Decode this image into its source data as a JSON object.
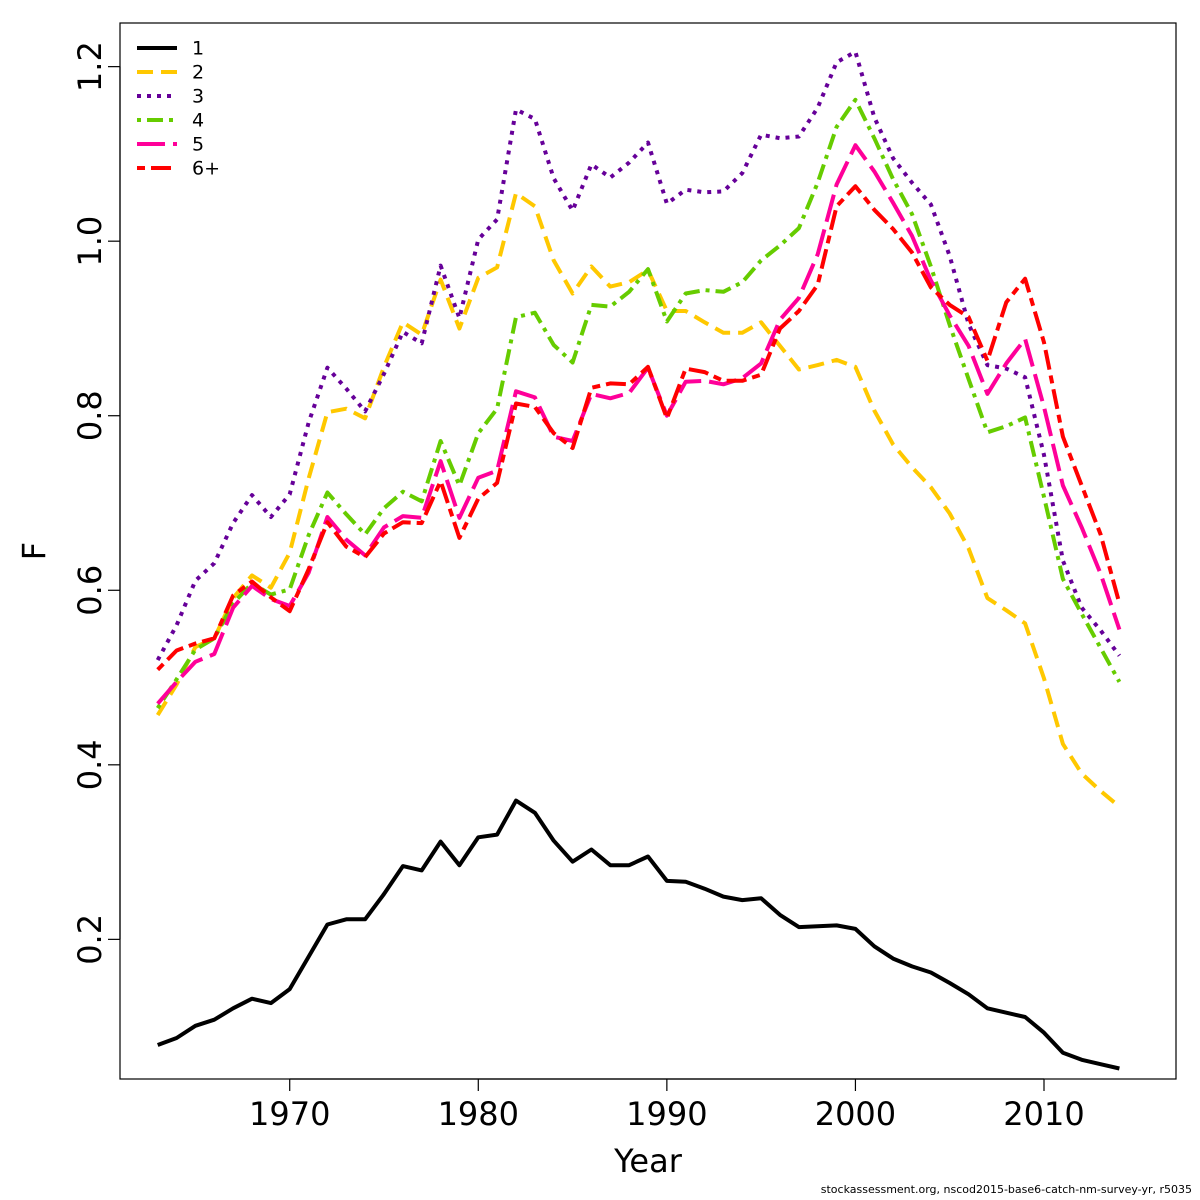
{
  "footer": "stockassessment.org, nscod2015-base6-catch-nm-survey-yr, r5035",
  "chart_data": {
    "type": "line",
    "title": "",
    "xlabel": "Year",
    "ylabel": "F",
    "xlim": [
      1961,
      2017
    ],
    "ylim": [
      0.04,
      1.25
    ],
    "x_ticks": [
      1970,
      1980,
      1990,
      2000,
      2010
    ],
    "y_ticks": [
      0.2,
      0.4,
      0.6,
      0.8,
      1.0,
      1.2
    ],
    "y_tick_labels": [
      "0.2",
      "0.4",
      "0.6",
      "0.8",
      "1.0",
      "1.2"
    ],
    "grid": false,
    "legend_position": "top-left",
    "x": [
      1963,
      1964,
      1965,
      1966,
      1967,
      1968,
      1969,
      1970,
      1971,
      1972,
      1973,
      1974,
      1975,
      1976,
      1977,
      1978,
      1979,
      1980,
      1981,
      1982,
      1983,
      1984,
      1985,
      1986,
      1987,
      1988,
      1989,
      1990,
      1991,
      1992,
      1993,
      1994,
      1995,
      1996,
      1997,
      1998,
      1999,
      2000,
      2001,
      2002,
      2003,
      2004,
      2005,
      2006,
      2007,
      2008,
      2009,
      2010,
      2011,
      2012,
      2013,
      2014
    ],
    "series": [
      {
        "name": "1",
        "color": "#000000",
        "dash": "solid",
        "values": [
          0.079,
          0.087,
          0.101,
          0.108,
          0.121,
          0.132,
          0.127,
          0.143,
          0.18,
          0.217,
          0.223,
          0.223,
          0.252,
          0.284,
          0.279,
          0.312,
          0.285,
          0.317,
          0.32,
          0.359,
          0.345,
          0.313,
          0.289,
          0.303,
          0.285,
          0.285,
          0.295,
          0.267,
          0.266,
          0.258,
          0.249,
          0.245,
          0.247,
          0.228,
          0.214,
          0.215,
          0.216,
          0.212,
          0.192,
          0.178,
          0.169,
          0.162,
          0.15,
          0.137,
          0.121,
          0.116,
          0.111,
          0.093,
          0.07,
          0.062,
          0.057,
          0.052
        ]
      },
      {
        "name": "2",
        "color": "#ffc800",
        "dash": "dashed",
        "values": [
          0.457,
          0.492,
          0.535,
          0.545,
          0.591,
          0.617,
          0.603,
          0.643,
          0.728,
          0.804,
          0.808,
          0.797,
          0.856,
          0.907,
          0.893,
          0.956,
          0.9,
          0.958,
          0.97,
          1.055,
          1.04,
          0.978,
          0.94,
          0.971,
          0.948,
          0.953,
          0.967,
          0.92,
          0.92,
          0.907,
          0.895,
          0.895,
          0.907,
          0.88,
          0.853,
          0.858,
          0.864,
          0.856,
          0.806,
          0.767,
          0.741,
          0.718,
          0.688,
          0.648,
          0.591,
          0.577,
          0.562,
          0.499,
          0.424,
          0.39,
          0.37,
          0.352
        ]
      },
      {
        "name": "3",
        "color": "#660099",
        "dash": "dotted",
        "values": [
          0.52,
          0.56,
          0.611,
          0.631,
          0.677,
          0.709,
          0.684,
          0.71,
          0.792,
          0.855,
          0.831,
          0.805,
          0.848,
          0.896,
          0.883,
          0.972,
          0.912,
          1.002,
          1.025,
          1.151,
          1.14,
          1.072,
          1.035,
          1.088,
          1.073,
          1.09,
          1.113,
          1.043,
          1.059,
          1.056,
          1.057,
          1.078,
          1.122,
          1.118,
          1.12,
          1.153,
          1.205,
          1.217,
          1.142,
          1.095,
          1.067,
          1.042,
          0.983,
          0.905,
          0.858,
          0.854,
          0.844,
          0.755,
          0.634,
          0.58,
          0.554,
          0.525
        ]
      },
      {
        "name": "4",
        "color": "#66cc00",
        "dash": "dotdash",
        "values": [
          0.465,
          0.498,
          0.532,
          0.545,
          0.585,
          0.608,
          0.595,
          0.601,
          0.663,
          0.712,
          0.687,
          0.664,
          0.694,
          0.713,
          0.702,
          0.771,
          0.72,
          0.78,
          0.808,
          0.913,
          0.918,
          0.881,
          0.861,
          0.927,
          0.925,
          0.942,
          0.968,
          0.908,
          0.94,
          0.944,
          0.942,
          0.953,
          0.978,
          0.995,
          1.015,
          1.067,
          1.131,
          1.162,
          1.118,
          1.071,
          1.031,
          0.971,
          0.904,
          0.842,
          0.781,
          0.788,
          0.798,
          0.707,
          0.613,
          0.573,
          0.534,
          0.495
        ]
      },
      {
        "name": "5",
        "color": "#ff0099",
        "dash": "longdash",
        "values": [
          0.47,
          0.495,
          0.518,
          0.527,
          0.58,
          0.605,
          0.59,
          0.582,
          0.62,
          0.684,
          0.658,
          0.64,
          0.672,
          0.685,
          0.683,
          0.748,
          0.683,
          0.729,
          0.737,
          0.828,
          0.821,
          0.776,
          0.771,
          0.825,
          0.82,
          0.826,
          0.855,
          0.8,
          0.839,
          0.84,
          0.836,
          0.843,
          0.86,
          0.91,
          0.935,
          0.985,
          1.065,
          1.11,
          1.08,
          1.044,
          1.006,
          0.955,
          0.915,
          0.88,
          0.825,
          0.86,
          0.888,
          0.81,
          0.72,
          0.672,
          0.619,
          0.555
        ]
      },
      {
        "name": "6+",
        "color": "#ff0000",
        "dash": "twodash",
        "values": [
          0.509,
          0.531,
          0.539,
          0.545,
          0.594,
          0.61,
          0.592,
          0.576,
          0.624,
          0.678,
          0.65,
          0.638,
          0.665,
          0.678,
          0.677,
          0.725,
          0.66,
          0.705,
          0.723,
          0.814,
          0.81,
          0.78,
          0.763,
          0.832,
          0.837,
          0.836,
          0.856,
          0.797,
          0.854,
          0.85,
          0.84,
          0.84,
          0.847,
          0.9,
          0.92,
          0.95,
          1.04,
          1.063,
          1.036,
          1.014,
          0.987,
          0.947,
          0.927,
          0.913,
          0.863,
          0.93,
          0.957,
          0.884,
          0.776,
          0.72,
          0.664,
          0.585
        ]
      }
    ]
  }
}
